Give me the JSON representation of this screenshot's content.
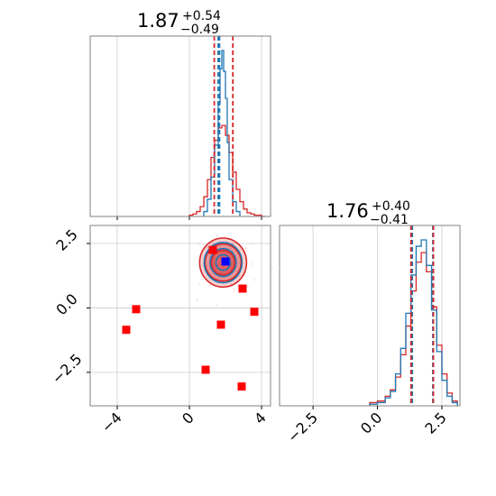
{
  "chart_data": {
    "type": "corner",
    "params": [
      "p0",
      "p1"
    ],
    "colors": {
      "red": "#d62728",
      "blue": "#1f77b4",
      "marker_red": "#ff0000",
      "marker_blue": "#0000ff",
      "grid": "#cccccc"
    },
    "p0_panel": {
      "title": {
        "value": "1.87",
        "plus": "+0.54",
        "minus": "−0.49"
      },
      "xlim": [
        -5.5,
        4.5
      ],
      "grid": true,
      "quantile_lines_red": [
        1.38,
        2.41
      ],
      "quantile_lines_blue": [
        1.6,
        1.67
      ],
      "hist_red": {
        "bins": [
          0.0,
          0.2,
          0.4,
          0.6,
          0.8,
          1.0,
          1.2,
          1.4,
          1.6,
          1.8,
          2.0,
          2.2,
          2.4,
          2.6,
          2.8,
          3.0,
          3.2,
          3.4,
          3.6,
          3.8,
          4.0,
          4.2
        ],
        "counts": [
          1,
          2,
          4,
          8,
          16,
          30,
          48,
          62,
          72,
          74,
          66,
          52,
          36,
          22,
          12,
          6,
          3,
          2,
          1,
          1,
          0
        ]
      },
      "hist_blue": {
        "bins": [
          0.8,
          1.0,
          1.2,
          1.4,
          1.6,
          1.7,
          1.8,
          1.9,
          2.0,
          2.1,
          2.2,
          2.4,
          2.6,
          2.8
        ],
        "counts": [
          4,
          14,
          32,
          58,
          92,
          120,
          135,
          118,
          96,
          60,
          30,
          12,
          4
        ]
      }
    },
    "p1_panel": {
      "title": {
        "value": "1.76",
        "plus": "+0.40",
        "minus": "−0.41"
      },
      "xlim": [
        -3.8,
        3.2
      ],
      "grid": true,
      "quantile_lines_red": [
        1.3,
        2.17
      ],
      "quantile_lines_blue": [
        1.35,
        2.15
      ],
      "hist_red": {
        "bins": [
          -0.3,
          0.0,
          0.3,
          0.5,
          0.7,
          0.9,
          1.1,
          1.3,
          1.5,
          1.7,
          1.9,
          2.1,
          2.3,
          2.5,
          2.7,
          2.9,
          3.1
        ],
        "counts": [
          2,
          3,
          6,
          10,
          18,
          32,
          50,
          72,
          90,
          96,
          84,
          62,
          38,
          20,
          8,
          3
        ]
      },
      "hist_blue": {
        "bins": [
          -0.3,
          0.0,
          0.3,
          0.5,
          0.7,
          0.9,
          1.1,
          1.3,
          1.5,
          1.7,
          1.9,
          2.1,
          2.3,
          2.5,
          2.7,
          2.9,
          3.1
        ],
        "counts": [
          1,
          2,
          5,
          9,
          20,
          36,
          58,
          82,
          100,
          104,
          88,
          60,
          34,
          16,
          6,
          2
        ]
      }
    },
    "joint_panel": {
      "xlim": [
        -5.5,
        4.5
      ],
      "ylim": [
        -3.8,
        3.2
      ],
      "grid": true,
      "xticks": [
        -4,
        0,
        4
      ],
      "yticks": [
        2.5,
        0.0,
        -2.5
      ],
      "xtick_labels": [
        "−4",
        "0",
        "4"
      ],
      "ytick_labels": [
        "2.5",
        "0.0",
        "−2.5"
      ],
      "contour_center": [
        1.87,
        1.76
      ],
      "contour_red_radii": [
        [
          1.3,
          0.95
        ],
        [
          1.0,
          0.72
        ],
        [
          0.65,
          0.48
        ]
      ],
      "contour_blue_radii": [
        [
          1.05,
          0.78
        ],
        [
          0.72,
          0.54
        ],
        [
          0.4,
          0.3
        ]
      ],
      "red_markers": [
        {
          "x": 1.3,
          "y": 2.25
        },
        {
          "x": 2.95,
          "y": 0.75
        },
        {
          "x": 3.6,
          "y": -0.15
        },
        {
          "x": -2.95,
          "y": -0.05
        },
        {
          "x": -3.5,
          "y": -0.85
        },
        {
          "x": 1.75,
          "y": -0.65
        },
        {
          "x": 0.9,
          "y": -2.4
        },
        {
          "x": 2.9,
          "y": -3.05
        }
      ],
      "blue_marker": {
        "x": 2.0,
        "y": 1.8
      }
    },
    "bottom_right_xticks": [
      -2.5,
      0.0,
      2.5
    ],
    "bottom_right_xtick_labels": [
      "−2.5",
      "0.0",
      "2.5"
    ]
  }
}
